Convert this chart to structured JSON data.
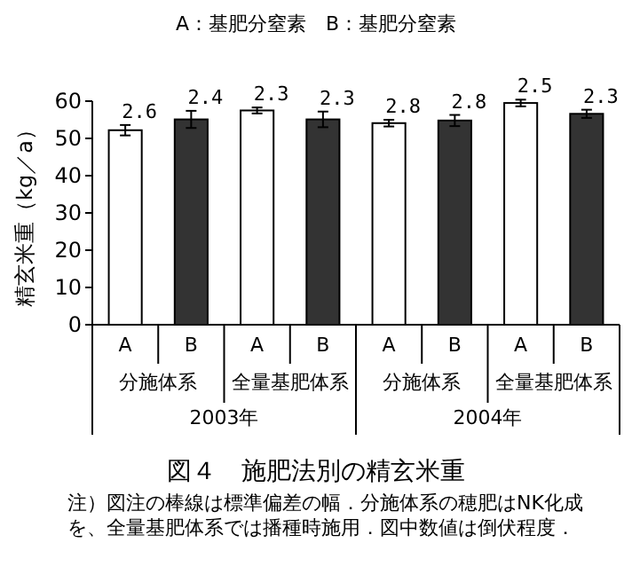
{
  "chart_data": {
    "type": "bar",
    "subtitle": "A：基肥分窒素　B：基肥分窒素",
    "title": "図４　施肥法別の精玄米重",
    "ylabel": "精玄米重（kg／a）",
    "categories": [
      "A",
      "B",
      "A",
      "B",
      "A",
      "B",
      "A",
      "B"
    ],
    "values": [
      52.2,
      55.1,
      57.5,
      55.1,
      54.1,
      54.8,
      59.5,
      56.6
    ],
    "colors": [
      "#ffffff",
      "#333333",
      "#ffffff",
      "#333333",
      "#ffffff",
      "#333333",
      "#ffffff",
      "#333333"
    ],
    "errors": [
      1.4,
      2.3,
      0.8,
      2.1,
      0.9,
      1.5,
      0.9,
      1.1
    ],
    "ylim": [
      0,
      60
    ],
    "yticks": [
      0,
      10,
      20,
      30,
      40,
      50,
      60
    ],
    "grid": false,
    "annotations": [
      "2.6",
      "2.4",
      "2.3",
      "2.3",
      "2.8",
      "2.8",
      "2.5",
      "2.3",
      "分施体系",
      "全量基肥体系",
      "分施体系",
      "全量基肥体系",
      "2003年",
      "2004年",
      "注）図注の棒線は標準偏差の幅．分施体系の穂肥はNK化成を、全量基肥体系では播種時施用．図中数値は倒伏程度．"
    ]
  }
}
